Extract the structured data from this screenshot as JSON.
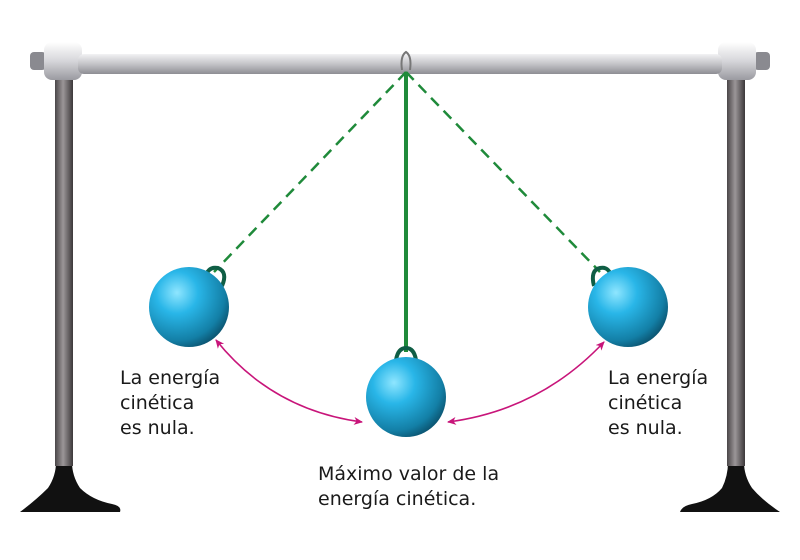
{
  "labels": {
    "left": [
      "La energía",
      "cinética",
      "es nula."
    ],
    "right": [
      "La energía",
      "cinética",
      "es nula."
    ],
    "center": [
      "Máximo valor de la",
      "energía cinética."
    ]
  },
  "colors": {
    "ball": "#29b6e8",
    "ball_dark": "#0a5a78",
    "string": "#1f8a3a",
    "arrow": "#c8157a",
    "pole": "#6e6a6c",
    "bar": "#c9c9cc",
    "base": "#111111"
  }
}
